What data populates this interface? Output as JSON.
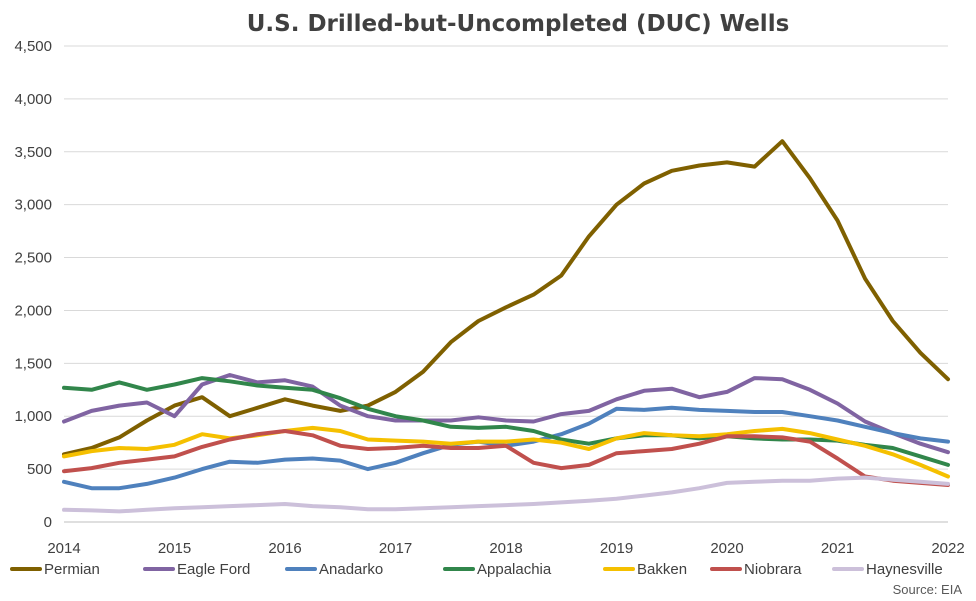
{
  "chart_data": {
    "type": "line",
    "title": "U.S. Drilled-but-Uncompleted (DUC) Wells",
    "xlabel": "",
    "ylabel": "",
    "x_ticks": [
      "2014",
      "2015",
      "2016",
      "2017",
      "2018",
      "2019",
      "2020",
      "2021",
      "2022"
    ],
    "xlim": [
      2014,
      2022
    ],
    "y_ticks": [
      "0",
      "500",
      "1,000",
      "1,500",
      "2,000",
      "2,500",
      "3,000",
      "3,500",
      "4,000",
      "4,500"
    ],
    "ylim": [
      0,
      4500
    ],
    "grid": "horizontal",
    "legend_position": "bottom",
    "source": "Source: EIA",
    "series": [
      {
        "name": "Permian",
        "color": "#7f6000",
        "x": [
          2014.0,
          2014.25,
          2014.5,
          2014.75,
          2015.0,
          2015.25,
          2015.5,
          2015.75,
          2016.0,
          2016.25,
          2016.5,
          2016.75,
          2017.0,
          2017.25,
          2017.5,
          2017.75,
          2018.0,
          2018.25,
          2018.5,
          2018.75,
          2019.0,
          2019.25,
          2019.5,
          2019.75,
          2020.0,
          2020.25,
          2020.5,
          2020.75,
          2021.0,
          2021.25,
          2021.5,
          2021.75,
          2022.0
        ],
        "y": [
          640,
          700,
          800,
          960,
          1100,
          1180,
          1000,
          1080,
          1160,
          1100,
          1050,
          1100,
          1230,
          1420,
          1700,
          1900,
          2030,
          2150,
          2330,
          2700,
          3000,
          3200,
          3320,
          3370,
          3400,
          3360,
          3600,
          3250,
          2850,
          2300,
          1900,
          1600,
          1350
        ]
      },
      {
        "name": "Eagle Ford",
        "color": "#8064a2",
        "x": [
          2014.0,
          2014.25,
          2014.5,
          2014.75,
          2015.0,
          2015.25,
          2015.5,
          2015.75,
          2016.0,
          2016.25,
          2016.5,
          2016.75,
          2017.0,
          2017.25,
          2017.5,
          2017.75,
          2018.0,
          2018.25,
          2018.5,
          2018.75,
          2019.0,
          2019.25,
          2019.5,
          2019.75,
          2020.0,
          2020.25,
          2020.5,
          2020.75,
          2021.0,
          2021.25,
          2021.5,
          2021.75,
          2022.0
        ],
        "y": [
          950,
          1050,
          1100,
          1130,
          1000,
          1300,
          1390,
          1320,
          1340,
          1280,
          1100,
          1000,
          960,
          960,
          960,
          990,
          960,
          950,
          1020,
          1050,
          1160,
          1240,
          1260,
          1180,
          1230,
          1360,
          1350,
          1250,
          1120,
          950,
          840,
          740,
          660
        ]
      },
      {
        "name": "Anadarko",
        "color": "#4f81bd",
        "x": [
          2014.0,
          2014.25,
          2014.5,
          2014.75,
          2015.0,
          2015.25,
          2015.5,
          2015.75,
          2016.0,
          2016.25,
          2016.5,
          2016.75,
          2017.0,
          2017.25,
          2017.5,
          2017.75,
          2018.0,
          2018.25,
          2018.5,
          2018.75,
          2019.0,
          2019.25,
          2019.5,
          2019.75,
          2020.0,
          2020.25,
          2020.5,
          2020.75,
          2021.0,
          2021.25,
          2021.5,
          2021.75,
          2022.0
        ],
        "y": [
          380,
          320,
          320,
          360,
          420,
          500,
          570,
          560,
          590,
          600,
          580,
          500,
          560,
          650,
          730,
          760,
          720,
          760,
          830,
          930,
          1070,
          1060,
          1080,
          1060,
          1050,
          1040,
          1040,
          1000,
          960,
          900,
          840,
          790,
          760
        ]
      },
      {
        "name": "Appalachia",
        "color": "#31864b",
        "x": [
          2014.0,
          2014.25,
          2014.5,
          2014.75,
          2015.0,
          2015.25,
          2015.5,
          2015.75,
          2016.0,
          2016.25,
          2016.5,
          2016.75,
          2017.0,
          2017.25,
          2017.5,
          2017.75,
          2018.0,
          2018.25,
          2018.5,
          2018.75,
          2019.0,
          2019.25,
          2019.5,
          2019.75,
          2020.0,
          2020.25,
          2020.5,
          2020.75,
          2021.0,
          2021.25,
          2021.5,
          2021.75,
          2022.0
        ],
        "y": [
          1270,
          1250,
          1320,
          1250,
          1300,
          1360,
          1330,
          1290,
          1270,
          1250,
          1170,
          1070,
          1000,
          960,
          900,
          890,
          900,
          860,
          780,
          740,
          790,
          820,
          820,
          790,
          810,
          790,
          780,
          780,
          770,
          730,
          700,
          620,
          540
        ]
      },
      {
        "name": "Bakken",
        "color": "#f5c000",
        "x": [
          2014.0,
          2014.25,
          2014.5,
          2014.75,
          2015.0,
          2015.25,
          2015.5,
          2015.75,
          2016.0,
          2016.25,
          2016.5,
          2016.75,
          2017.0,
          2017.25,
          2017.5,
          2017.75,
          2018.0,
          2018.25,
          2018.5,
          2018.75,
          2019.0,
          2019.25,
          2019.5,
          2019.75,
          2020.0,
          2020.25,
          2020.5,
          2020.75,
          2021.0,
          2021.25,
          2021.5,
          2021.75,
          2022.0
        ],
        "y": [
          620,
          670,
          700,
          690,
          730,
          830,
          790,
          820,
          860,
          890,
          860,
          780,
          770,
          760,
          740,
          760,
          760,
          780,
          750,
          690,
          790,
          840,
          820,
          810,
          830,
          860,
          880,
          840,
          780,
          720,
          640,
          540,
          430
        ]
      },
      {
        "name": "Niobrara",
        "color": "#c0504d",
        "x": [
          2014.0,
          2014.25,
          2014.5,
          2014.75,
          2015.0,
          2015.25,
          2015.5,
          2015.75,
          2016.0,
          2016.25,
          2016.5,
          2016.75,
          2017.0,
          2017.25,
          2017.5,
          2017.75,
          2018.0,
          2018.25,
          2018.5,
          2018.75,
          2019.0,
          2019.25,
          2019.5,
          2019.75,
          2020.0,
          2020.25,
          2020.5,
          2020.75,
          2021.0,
          2021.25,
          2021.5,
          2021.75,
          2022.0
        ],
        "y": [
          480,
          510,
          560,
          590,
          620,
          710,
          780,
          830,
          860,
          820,
          720,
          690,
          700,
          720,
          700,
          700,
          720,
          560,
          510,
          540,
          650,
          670,
          690,
          740,
          810,
          810,
          800,
          760,
          600,
          430,
          390,
          370,
          350
        ]
      },
      {
        "name": "Haynesville",
        "color": "#ccc0da",
        "x": [
          2014.0,
          2014.25,
          2014.5,
          2014.75,
          2015.0,
          2015.25,
          2015.5,
          2015.75,
          2016.0,
          2016.25,
          2016.5,
          2016.75,
          2017.0,
          2017.25,
          2017.5,
          2017.75,
          2018.0,
          2018.25,
          2018.5,
          2018.75,
          2019.0,
          2019.25,
          2019.5,
          2019.75,
          2020.0,
          2020.25,
          2020.5,
          2020.75,
          2021.0,
          2021.25,
          2021.5,
          2021.75,
          2022.0
        ],
        "y": [
          115,
          110,
          100,
          115,
          130,
          140,
          150,
          160,
          170,
          150,
          140,
          120,
          120,
          130,
          140,
          150,
          160,
          170,
          185,
          200,
          220,
          250,
          280,
          320,
          370,
          380,
          390,
          390,
          410,
          420,
          400,
          380,
          360
        ]
      }
    ]
  }
}
